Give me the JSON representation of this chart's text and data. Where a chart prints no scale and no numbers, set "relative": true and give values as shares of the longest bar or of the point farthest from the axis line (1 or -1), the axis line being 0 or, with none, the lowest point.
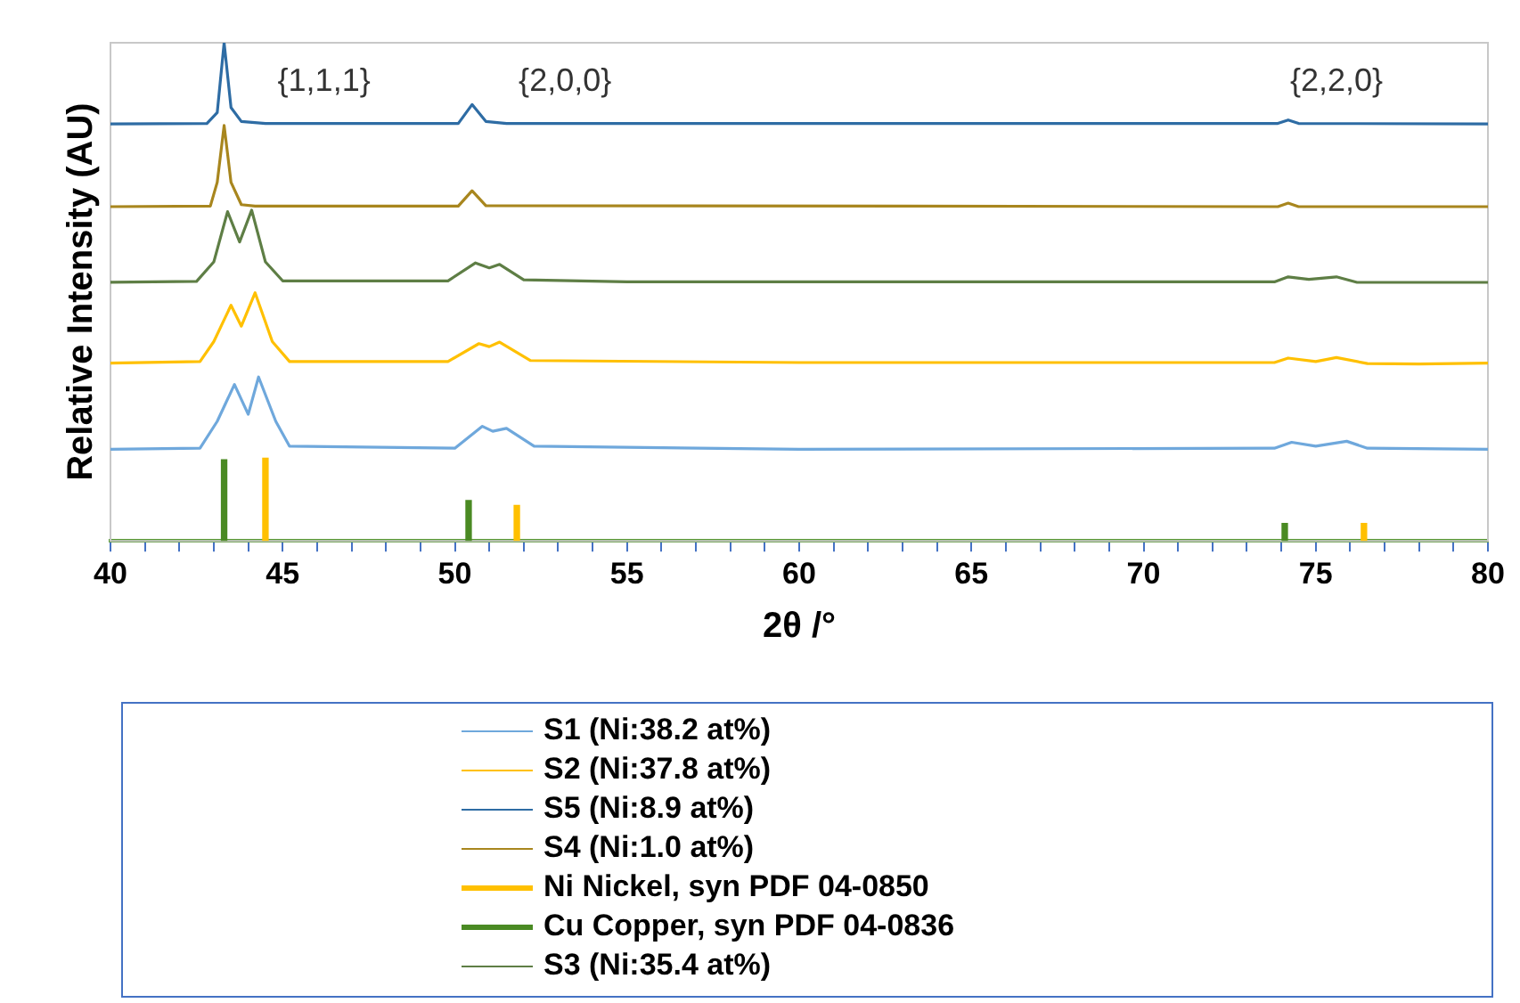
{
  "chart_data": {
    "type": "line",
    "relative": true,
    "xlabel": "2θ /°",
    "ylabel": "Relative Intensity (AU)",
    "xlim": [
      40,
      80
    ],
    "xticks": [
      40,
      {
        "value": 41,
        "label": null
      },
      {
        "value": 42,
        "label": null
      },
      {
        "value": 43,
        "label": null
      },
      {
        "value": 44,
        "label": null
      },
      45,
      {
        "value": 46,
        "label": null
      },
      {
        "value": 47,
        "label": null
      },
      {
        "value": 48,
        "label": null
      },
      {
        "value": 49,
        "label": null
      },
      50,
      {
        "value": 51,
        "label": null
      },
      {
        "value": 52,
        "label": null
      },
      {
        "value": 53,
        "label": null
      },
      {
        "value": 54,
        "label": null
      },
      55,
      {
        "value": 56,
        "label": null
      },
      {
        "value": 57,
        "label": null
      },
      {
        "value": 58,
        "label": null
      },
      {
        "value": 59,
        "label": null
      },
      60,
      {
        "value": 61,
        "label": null
      },
      {
        "value": 62,
        "label": null
      },
      {
        "value": 63,
        "label": null
      },
      {
        "value": 64,
        "label": null
      },
      65,
      {
        "value": 66,
        "label": null
      },
      {
        "value": 67,
        "label": null
      },
      {
        "value": 68,
        "label": null
      },
      {
        "value": 69,
        "label": null
      },
      70,
      {
        "value": 71,
        "label": null
      },
      {
        "value": 72,
        "label": null
      },
      {
        "value": 73,
        "label": null
      },
      {
        "value": 74,
        "label": null
      },
      75,
      {
        "value": 76,
        "label": null
      },
      {
        "value": 77,
        "label": null
      },
      {
        "value": 78,
        "label": null
      },
      {
        "value": 79,
        "label": null
      },
      80
    ],
    "grid": false,
    "legend": "bottom",
    "marker": "none",
    "line_style": "solid",
    "annotations": [
      "{1,1,1}",
      "{2,0,0}",
      "{2,2,0}"
    ],
    "series": [
      {
        "name": "S1 (Ni:38.2 at%)",
        "color": "#6fa8dc",
        "x": [
          40,
          42.6,
          43.1,
          43.6,
          44.0,
          44.3,
          44.8,
          45.2,
          50.0,
          50.8,
          51.1,
          51.5,
          52.3,
          60,
          73.8,
          74.3,
          75.0,
          75.9,
          76.5,
          80
        ],
        "values": [
          0.184,
          0.186,
          0.24,
          0.314,
          0.254,
          0.329,
          0.24,
          0.19,
          0.186,
          0.23,
          0.22,
          0.226,
          0.19,
          0.184,
          0.186,
          0.198,
          0.19,
          0.2,
          0.186,
          0.184
        ]
      },
      {
        "name": "S2 (Ni:37.8 at%)",
        "color": "#ffc000",
        "x": [
          40,
          42.6,
          43.0,
          43.5,
          43.8,
          44.2,
          44.7,
          45.2,
          49.8,
          50.7,
          51.0,
          51.3,
          52.2,
          60,
          73.8,
          74.2,
          75.0,
          75.6,
          76.5,
          78,
          80
        ],
        "values": [
          0.357,
          0.36,
          0.4,
          0.473,
          0.431,
          0.498,
          0.4,
          0.36,
          0.36,
          0.396,
          0.39,
          0.399,
          0.362,
          0.358,
          0.358,
          0.367,
          0.36,
          0.368,
          0.356,
          0.355,
          0.357
        ]
      },
      {
        "name": "S5 (Ni:8.9 at%)",
        "color": "#2e6ca4",
        "x": [
          40,
          42.8,
          43.1,
          43.3,
          43.5,
          43.8,
          44.5,
          50.1,
          50.5,
          50.9,
          51.5,
          73.9,
          74.2,
          74.5,
          80
        ],
        "values": [
          0.837,
          0.838,
          0.86,
          1.0,
          0.87,
          0.842,
          0.838,
          0.838,
          0.876,
          0.842,
          0.838,
          0.838,
          0.845,
          0.838,
          0.837
        ]
      },
      {
        "name": "S4 (Ni:1.0 at%)",
        "color": "#a8861e",
        "x": [
          40,
          42.9,
          43.1,
          43.3,
          43.5,
          43.8,
          44.2,
          50.1,
          50.5,
          50.9,
          73.9,
          74.2,
          74.5,
          80
        ],
        "values": [
          0.671,
          0.672,
          0.72,
          0.834,
          0.72,
          0.675,
          0.672,
          0.672,
          0.703,
          0.673,
          0.671,
          0.678,
          0.671,
          0.671
        ]
      },
      {
        "name": "Ni Nickel, syn PDF 04-0850",
        "type": "bar",
        "color": "#ffc000",
        "x": [
          44.5,
          51.8,
          76.4
        ],
        "values": [
          0.166,
          0.071,
          0.035
        ]
      },
      {
        "name": "Cu Copper, syn PDF 04-0836",
        "type": "bar",
        "color": "#4a8a23",
        "x": [
          43.3,
          50.4,
          74.1
        ],
        "values": [
          0.163,
          0.081,
          0.035
        ]
      },
      {
        "name": "S3 (Ni:35.4 at%)",
        "color": "#5e7e45",
        "x": [
          40,
          42.5,
          43.0,
          43.4,
          43.75,
          44.1,
          44.5,
          45.0,
          49.8,
          50.6,
          51.0,
          51.3,
          52.0,
          55,
          73.8,
          74.2,
          74.8,
          75.6,
          76.2,
          80
        ],
        "values": [
          0.519,
          0.521,
          0.56,
          0.661,
          0.6,
          0.664,
          0.56,
          0.522,
          0.522,
          0.558,
          0.548,
          0.555,
          0.524,
          0.52,
          0.52,
          0.53,
          0.525,
          0.53,
          0.519,
          0.519
        ]
      }
    ]
  }
}
